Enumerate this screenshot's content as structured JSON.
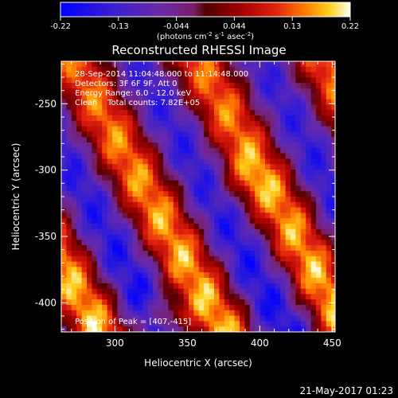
{
  "chart_data": {
    "type": "heatmap",
    "title": "Reconstructed RHESSI Image",
    "xlabel": "Heliocentric X (arcsec)",
    "ylabel": "Heliocentric Y (arcsec)",
    "xlim": [
      263,
      452
    ],
    "ylim": [
      -422,
      -218
    ],
    "x_ticks": [
      300,
      350,
      400,
      450
    ],
    "y_ticks": [
      -250,
      -300,
      -350,
      -400
    ],
    "colorbar": {
      "range": [
        -0.22,
        0.22
      ],
      "ticks": [
        "-0.22",
        "-0.13",
        "-0.044",
        "0.044",
        "0.13",
        "0.22"
      ],
      "label_main": "(photons cm",
      "label_exp1": "-2",
      "label_mid1": " s",
      "label_exp2": "-1",
      "label_mid2": " asec",
      "label_exp3": "-2",
      "label_end": ")"
    },
    "annotations": [
      "28-Sep-2014 11:04:48.000 to 11:14:48.000",
      "Detectors: 3F 6F 9F, Att 0",
      "Energy Range: 6.0 - 12.0 keV",
      "Clean    Total counts: 7.82E+05"
    ],
    "peak_label": "Position of Peak = [407,-415]",
    "peak": [
      407,
      -415
    ],
    "grid": false
  },
  "footer": {
    "timestamp": "21-May-2017 01:23"
  }
}
